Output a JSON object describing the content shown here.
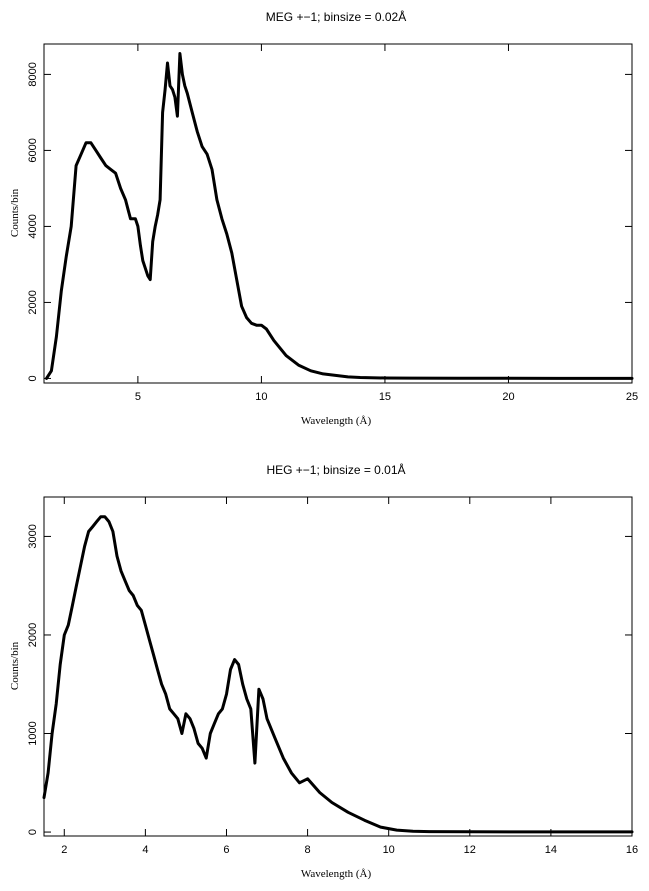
{
  "chart_data": [
    {
      "type": "line",
      "title": "MEG +−1; binsize = 0.02Å",
      "xlabel": "Wavelength (Å)",
      "ylabel": "Counts/bin",
      "xlim": [
        1.2,
        25
      ],
      "ylim": [
        -120,
        8800
      ],
      "xticks": [
        5,
        10,
        15,
        20,
        25
      ],
      "yticks": [
        0,
        2000,
        4000,
        6000,
        8000
      ],
      "x": [
        1.3,
        1.5,
        1.7,
        1.9,
        2.1,
        2.3,
        2.5,
        2.7,
        2.9,
        3.1,
        3.3,
        3.5,
        3.7,
        3.9,
        4.1,
        4.3,
        4.5,
        4.7,
        4.9,
        5.0,
        5.1,
        5.2,
        5.3,
        5.4,
        5.5,
        5.6,
        5.7,
        5.8,
        5.9,
        6.0,
        6.1,
        6.2,
        6.3,
        6.4,
        6.5,
        6.6,
        6.7,
        6.8,
        6.9,
        7.0,
        7.2,
        7.4,
        7.6,
        7.8,
        8.0,
        8.2,
        8.4,
        8.6,
        8.8,
        9.0,
        9.2,
        9.4,
        9.6,
        9.8,
        10.0,
        10.2,
        10.5,
        11.0,
        11.5,
        12.0,
        12.5,
        13.0,
        13.5,
        14.0,
        15.0,
        16.0,
        18.0,
        20.0,
        22.0,
        25.0
      ],
      "y": [
        0,
        200,
        1100,
        2300,
        3200,
        4000,
        5600,
        5900,
        6200,
        6200,
        6000,
        5800,
        5600,
        5500,
        5400,
        5000,
        4700,
        4200,
        4200,
        4000,
        3500,
        3100,
        2900,
        2700,
        2600,
        3600,
        4000,
        4300,
        4700,
        7000,
        7600,
        8300,
        7700,
        7600,
        7400,
        6900,
        8550,
        8000,
        7700,
        7500,
        7000,
        6500,
        6100,
        5900,
        5500,
        4700,
        4200,
        3800,
        3300,
        2600,
        1900,
        1600,
        1450,
        1400,
        1400,
        1300,
        1000,
        600,
        350,
        200,
        120,
        80,
        40,
        25,
        12,
        8,
        5,
        3,
        2,
        2
      ]
    },
    {
      "type": "line",
      "title": "HEG +−1; binsize = 0.01Å",
      "xlabel": "Wavelength (Å)",
      "ylabel": "Counts/bin",
      "xlim": [
        1.5,
        16
      ],
      "ylim": [
        -40,
        3400
      ],
      "xticks": [
        2,
        4,
        6,
        8,
        10,
        12,
        14,
        16
      ],
      "yticks": [
        0,
        1000,
        2000,
        3000
      ],
      "x": [
        1.5,
        1.6,
        1.7,
        1.8,
        1.9,
        2.0,
        2.1,
        2.2,
        2.3,
        2.4,
        2.5,
        2.6,
        2.7,
        2.8,
        2.9,
        3.0,
        3.1,
        3.2,
        3.3,
        3.4,
        3.5,
        3.6,
        3.7,
        3.8,
        3.9,
        4.0,
        4.1,
        4.2,
        4.3,
        4.4,
        4.5,
        4.6,
        4.7,
        4.8,
        4.9,
        5.0,
        5.1,
        5.2,
        5.3,
        5.4,
        5.5,
        5.6,
        5.7,
        5.8,
        5.9,
        6.0,
        6.1,
        6.2,
        6.3,
        6.4,
        6.5,
        6.6,
        6.7,
        6.8,
        6.9,
        7.0,
        7.2,
        7.4,
        7.6,
        7.8,
        8.0,
        8.3,
        8.6,
        9.0,
        9.4,
        9.8,
        10.2,
        10.6,
        11.0,
        12.0,
        14.0,
        16.0
      ],
      "y": [
        350,
        600,
        1000,
        1300,
        1700,
        2000,
        2100,
        2300,
        2500,
        2700,
        2900,
        3050,
        3100,
        3150,
        3200,
        3200,
        3150,
        3050,
        2800,
        2650,
        2550,
        2450,
        2400,
        2300,
        2250,
        2100,
        1950,
        1800,
        1650,
        1500,
        1400,
        1250,
        1200,
        1150,
        1000,
        1200,
        1150,
        1050,
        900,
        850,
        750,
        1000,
        1100,
        1200,
        1250,
        1400,
        1650,
        1750,
        1700,
        1500,
        1350,
        1250,
        700,
        1450,
        1350,
        1150,
        950,
        750,
        600,
        500,
        540,
        400,
        300,
        200,
        120,
        50,
        20,
        8,
        5,
        3,
        2,
        2
      ]
    }
  ]
}
